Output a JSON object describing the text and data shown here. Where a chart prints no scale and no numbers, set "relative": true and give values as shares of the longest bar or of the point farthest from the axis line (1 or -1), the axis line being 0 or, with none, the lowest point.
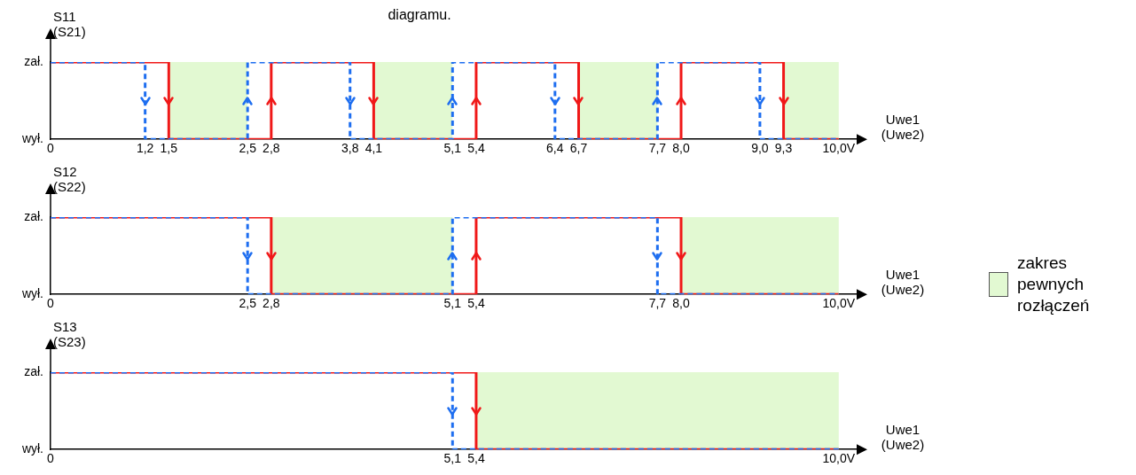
{
  "chart_data": [
    {
      "type": "step",
      "title": "diagramu.",
      "ylabel": "S11 (S21)",
      "xlabel": "Uwe1 (Uwe2)",
      "xlim": [
        0,
        10.25
      ],
      "relative": true,
      "xticks": [
        {
          "value": 0,
          "label": "0"
        },
        {
          "value": 1.2,
          "label": "1,2"
        },
        {
          "value": 1.5,
          "label": "1,5"
        },
        {
          "value": 2.5,
          "label": "2,5"
        },
        {
          "value": 2.8,
          "label": "2,8"
        },
        {
          "value": 3.8,
          "label": "3,8"
        },
        {
          "value": 4.1,
          "label": "4,1"
        },
        {
          "value": 5.1,
          "label": "5,1"
        },
        {
          "value": 5.4,
          "label": "5,4"
        },
        {
          "value": 6.4,
          "label": "6,4"
        },
        {
          "value": 6.7,
          "label": "6,7"
        },
        {
          "value": 7.7,
          "label": "7,7"
        },
        {
          "value": 8.0,
          "label": "8,0"
        },
        {
          "value": 9.0,
          "label": "9,0"
        },
        {
          "value": 9.3,
          "label": "9,3"
        },
        {
          "value": 10,
          "label": "10,0V"
        }
      ],
      "annotations": [
        "zał.",
        "wył."
      ],
      "series": [
        {
          "color": "#f01818",
          "line_style": "solid",
          "x": [
            0,
            1.5,
            2.8,
            4.1,
            5.4,
            6.7,
            8.0,
            9.3,
            10
          ],
          "values": [
            1,
            0,
            1,
            0,
            1,
            0,
            1,
            0,
            0
          ]
        },
        {
          "color": "#1e6ef0",
          "line_style": "dashed",
          "x": [
            0,
            1.2,
            2.5,
            3.8,
            5.1,
            6.4,
            7.7,
            9.0,
            10
          ],
          "values": [
            1,
            0,
            1,
            0,
            1,
            0,
            1,
            0,
            0
          ]
        }
      ],
      "bands": [
        {
          "axis": "x",
          "from": 1.5,
          "to": 2.5,
          "color": "#e2f9d2"
        },
        {
          "axis": "x",
          "from": 4.1,
          "to": 5.1,
          "color": "#e2f9d2"
        },
        {
          "axis": "x",
          "from": 6.7,
          "to": 7.7,
          "color": "#e2f9d2"
        },
        {
          "axis": "x",
          "from": 9.3,
          "to": 10,
          "color": "#e2f9d2"
        }
      ]
    },
    {
      "type": "step",
      "ylabel": "S12 (S22)",
      "xlabel": "Uwe1 (Uwe2)",
      "xlim": [
        0,
        10.25
      ],
      "relative": true,
      "xticks": [
        {
          "value": 0,
          "label": "0"
        },
        {
          "value": 2.5,
          "label": "2,5"
        },
        {
          "value": 2.8,
          "label": "2,8"
        },
        {
          "value": 5.1,
          "label": "5,1"
        },
        {
          "value": 5.4,
          "label": "5,4"
        },
        {
          "value": 7.7,
          "label": "7,7"
        },
        {
          "value": 8.0,
          "label": "8,0"
        },
        {
          "value": 10,
          "label": "10,0V"
        }
      ],
      "annotations": [
        "zał.",
        "wył.",
        "zakres pewnych rozłączeń"
      ],
      "series": [
        {
          "color": "#f01818",
          "line_style": "solid",
          "x": [
            0,
            2.8,
            5.4,
            8.0,
            10
          ],
          "values": [
            1,
            0,
            1,
            0,
            0
          ]
        },
        {
          "color": "#1e6ef0",
          "line_style": "dashed",
          "x": [
            0,
            2.5,
            5.1,
            7.7,
            10
          ],
          "values": [
            1,
            0,
            1,
            0,
            0
          ]
        }
      ],
      "bands": [
        {
          "axis": "x",
          "from": 2.8,
          "to": 5.1,
          "color": "#e2f9d2"
        },
        {
          "axis": "x",
          "from": 8.0,
          "to": 10,
          "color": "#e2f9d2"
        }
      ]
    },
    {
      "type": "step",
      "ylabel": "S13 (S23)",
      "xlabel": "Uwe1 (Uwe2)",
      "xlim": [
        0,
        10.25
      ],
      "relative": true,
      "xticks": [
        {
          "value": 0,
          "label": "0"
        },
        {
          "value": 5.1,
          "label": "5,1"
        },
        {
          "value": 5.4,
          "label": "5,4"
        },
        {
          "value": 10,
          "label": "10,0V"
        }
      ],
      "annotations": [
        "zał.",
        "wył."
      ],
      "series": [
        {
          "color": "#f01818",
          "line_style": "solid",
          "x": [
            0,
            5.4,
            10
          ],
          "values": [
            1,
            0,
            0
          ]
        },
        {
          "color": "#1e6ef0",
          "line_style": "dashed",
          "x": [
            0,
            5.1,
            10
          ],
          "values": [
            1,
            0,
            0
          ]
        }
      ],
      "bands": [
        {
          "axis": "x",
          "from": 5.4,
          "to": 10,
          "color": "#e2f9d2"
        }
      ]
    }
  ]
}
